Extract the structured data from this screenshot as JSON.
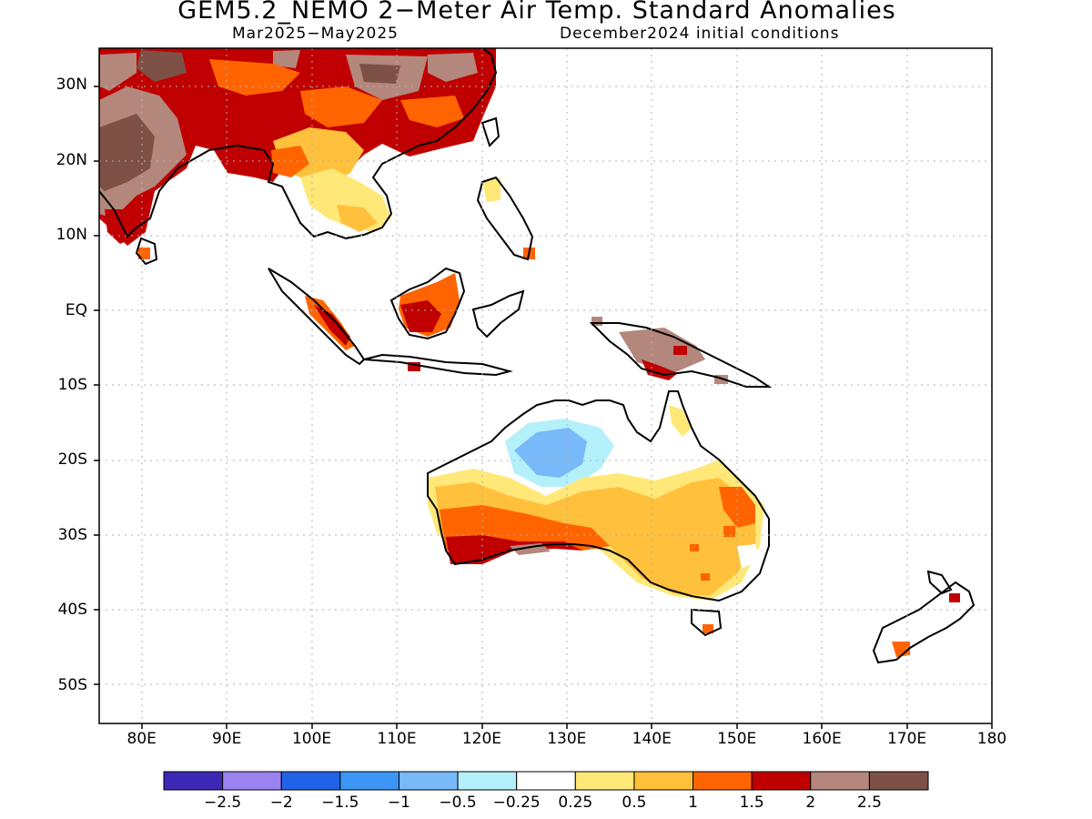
{
  "title": "GEM5.2_NEMO 2−Meter Air Temp. Standard Anomalies",
  "period": "Mar2025−May2025",
  "initial_conditions": "December2024 initial conditions",
  "lat_ticks": [
    {
      "label": "30N",
      "lat": 30
    },
    {
      "label": "20N",
      "lat": 20
    },
    {
      "label": "10N",
      "lat": 10
    },
    {
      "label": "EQ",
      "lat": 0
    },
    {
      "label": "10S",
      "lat": -10
    },
    {
      "label": "20S",
      "lat": -20
    },
    {
      "label": "30S",
      "lat": -30
    },
    {
      "label": "40S",
      "lat": -40
    },
    {
      "label": "50S",
      "lat": -50
    }
  ],
  "lon_ticks": [
    {
      "label": "80E",
      "lon": 80
    },
    {
      "label": "90E",
      "lon": 90
    },
    {
      "label": "100E",
      "lon": 100
    },
    {
      "label": "110E",
      "lon": 110
    },
    {
      "label": "120E",
      "lon": 120
    },
    {
      "label": "130E",
      "lon": 130
    },
    {
      "label": "140E",
      "lon": 140
    },
    {
      "label": "150E",
      "lon": 150
    },
    {
      "label": "160E",
      "lon": 160
    },
    {
      "label": "170E",
      "lon": 170
    },
    {
      "label": "180",
      "lon": 180
    }
  ],
  "map_extent": {
    "lon_min": 75,
    "lon_max": 180,
    "lat_min": -55,
    "lat_max": 35
  },
  "colorbar": {
    "colors": [
      "#3c28b4",
      "#9a82f0",
      "#2063e6",
      "#3c96f5",
      "#78b9fa",
      "#b4f0fa",
      "#ffffff",
      "#ffe878",
      "#ffc03c",
      "#ff6400",
      "#c00000",
      "#b4877d",
      "#7d5146"
    ],
    "labels": [
      "−2.5",
      "−2",
      "−1.5",
      "−1",
      "−0.5",
      "−0.25",
      "0.25",
      "0.5",
      "1",
      "1.5",
      "2",
      "2.5"
    ]
  }
}
